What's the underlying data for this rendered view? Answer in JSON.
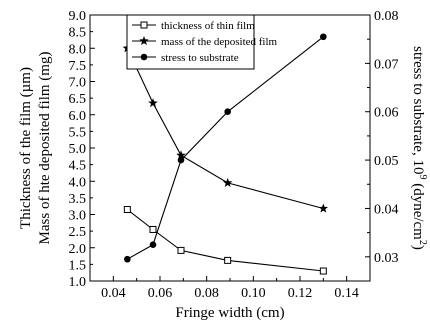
{
  "chart_data": {
    "type": "line",
    "xlabel": "Fringe width (cm)",
    "ylabel_left_1": "Thickness of the film (µm)",
    "ylabel_left_2": "Mass of hte deposited film (mg)",
    "ylabel_right": "stress to substrate, 10",
    "ylabel_right_exp": "9",
    "ylabel_right_unit": " (dyne/cm",
    "ylabel_right_unit_exp": "2",
    "ylabel_right_close": ")",
    "xlim": [
      0.03,
      0.15
    ],
    "ylim_left": [
      1.0,
      9.0
    ],
    "ylim_right": [
      0.025,
      0.08
    ],
    "x_ticks": [
      "0.04",
      "0.06",
      "0.08",
      "0.10",
      "0.12",
      "0.14"
    ],
    "y_left_ticks": [
      "1.0",
      "1.5",
      "2.0",
      "2.5",
      "3.0",
      "3.5",
      "4.0",
      "4.5",
      "5.0",
      "5.5",
      "6.0",
      "6.5",
      "7.0",
      "7.5",
      "8.0",
      "8.5",
      "9.0"
    ],
    "y_right_ticks": [
      "0.03",
      "0.04",
      "0.05",
      "0.06",
      "0.07",
      "0.08"
    ],
    "legend_position": "top-center",
    "series": [
      {
        "name": "thickness of thin film",
        "marker": "open-square",
        "axis": "left",
        "x": [
          0.046,
          0.057,
          0.069,
          0.089,
          0.13
        ],
        "y": [
          3.15,
          2.55,
          1.92,
          1.62,
          1.3
        ]
      },
      {
        "name": "mass of the deposited film",
        "marker": "star",
        "axis": "left",
        "x": [
          0.046,
          0.057,
          0.069,
          0.089,
          0.13
        ],
        "y": [
          8.0,
          6.35,
          4.78,
          3.95,
          3.18
        ]
      },
      {
        "name": "stress to substrate",
        "marker": "filled-circle",
        "axis": "right",
        "x": [
          0.046,
          0.057,
          0.069,
          0.089,
          0.13
        ],
        "y": [
          0.0295,
          0.0325,
          0.05,
          0.06,
          0.0755
        ]
      }
    ]
  }
}
